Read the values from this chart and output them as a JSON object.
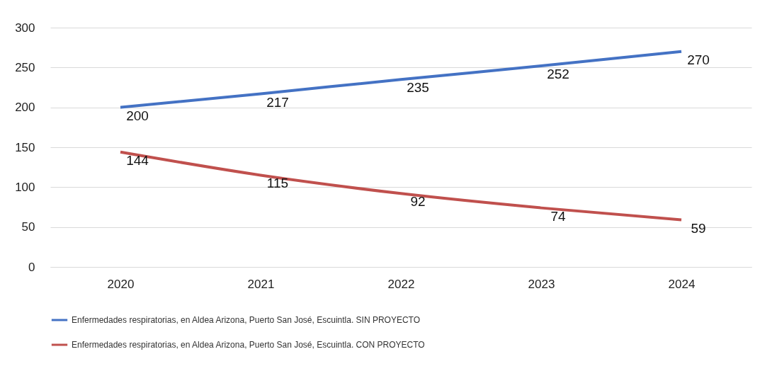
{
  "chart_data": {
    "type": "line",
    "categories": [
      "2020",
      "2021",
      "2022",
      "2023",
      "2024"
    ],
    "series": [
      {
        "name": "Enfermedades respiratorias, en Aldea Arizona, Puerto San José, Escuintla. SIN PROYECTO",
        "color": "#4472c4",
        "values": [
          200,
          217,
          235,
          252,
          270
        ]
      },
      {
        "name": "Enfermedades respiratorias, en Aldea Arizona, Puerto San José, Escuintla. CON PROYECTO",
        "color": "#c0504d",
        "values": [
          144,
          115,
          92,
          74,
          59
        ]
      }
    ],
    "ylim": [
      0,
      300
    ],
    "yticks": [
      0,
      50,
      100,
      150,
      200,
      250,
      300
    ],
    "grid": "y",
    "legend": "bottom",
    "data_labels": true,
    "marker": "none",
    "line_style": "solid"
  }
}
